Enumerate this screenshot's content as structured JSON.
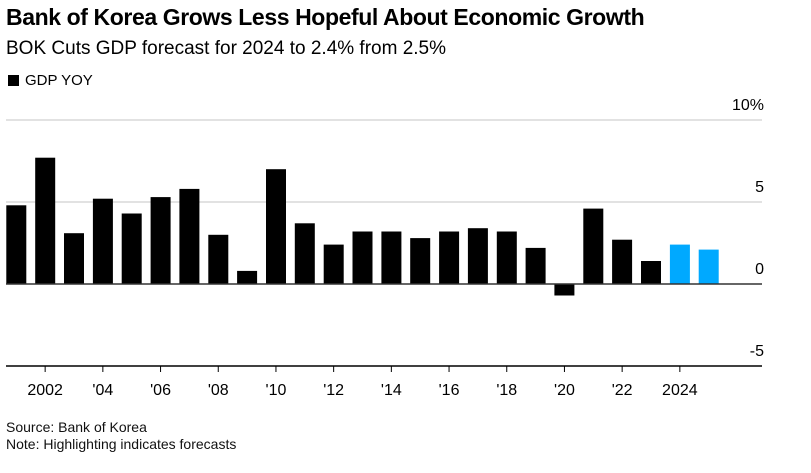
{
  "title": "Bank of Korea Grows Less Hopeful About Economic Growth",
  "subtitle": "BOK Cuts GDP forecast for 2024 to 2.4% from 2.5%",
  "legend": {
    "label": "GDP YOY",
    "color": "#000000"
  },
  "footer": {
    "source": "Source: Bank of Korea",
    "note": "Note: Highlighting indicates forecasts"
  },
  "colors": {
    "actual": "#000000",
    "forecast": "#00A9FF",
    "grid": "#d9d9d9",
    "axis": "#333333"
  },
  "chart_data": {
    "type": "bar",
    "title": "Bank of Korea Grows Less Hopeful About Economic Growth",
    "subtitle": "BOK Cuts GDP forecast for 2024 to 2.4% from 2.5%",
    "xlabel": "",
    "ylabel": "",
    "ylim": [
      -5,
      10
    ],
    "yticks": [
      10,
      5,
      0,
      -5
    ],
    "ytick_labels": [
      "10%",
      "5",
      "0",
      "-5"
    ],
    "y_axis_side": "right",
    "grid": true,
    "legend_position": "top-left",
    "categories": [
      2001,
      2002,
      2003,
      2004,
      2005,
      2006,
      2007,
      2008,
      2009,
      2010,
      2011,
      2012,
      2013,
      2014,
      2015,
      2016,
      2017,
      2018,
      2019,
      2020,
      2021,
      2022,
      2023,
      2024,
      2025
    ],
    "xticks": [
      2002,
      2004,
      2006,
      2008,
      2010,
      2012,
      2014,
      2016,
      2018,
      2020,
      2022,
      2024
    ],
    "xtick_labels": [
      "2002",
      "'04",
      "'06",
      "'08",
      "'10",
      "'12",
      "'14",
      "'16",
      "'18",
      "'20",
      "'22",
      "2024"
    ],
    "series": [
      {
        "name": "GDP YOY",
        "values": [
          4.8,
          7.7,
          3.1,
          5.2,
          4.3,
          5.3,
          5.8,
          3.0,
          0.8,
          7.0,
          3.7,
          2.4,
          3.2,
          3.2,
          2.8,
          3.2,
          3.4,
          3.2,
          2.2,
          -0.7,
          4.6,
          2.7,
          1.4,
          2.4,
          2.1
        ],
        "forecast": [
          false,
          false,
          false,
          false,
          false,
          false,
          false,
          false,
          false,
          false,
          false,
          false,
          false,
          false,
          false,
          false,
          false,
          false,
          false,
          false,
          false,
          false,
          false,
          true,
          true
        ]
      }
    ]
  }
}
